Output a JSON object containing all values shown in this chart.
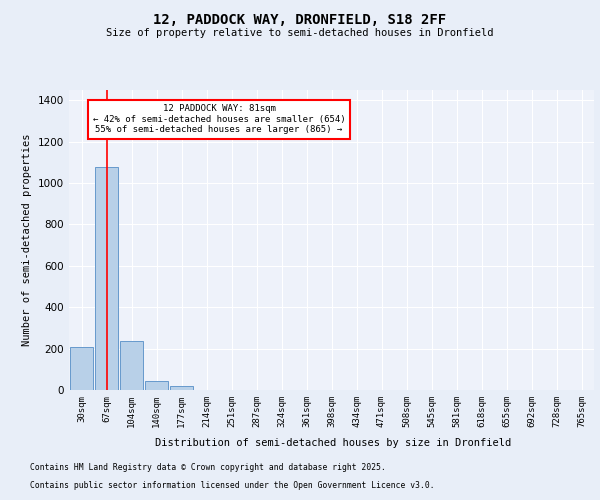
{
  "title_line1": "12, PADDOCK WAY, DRONFIELD, S18 2FF",
  "title_line2": "Size of property relative to semi-detached houses in Dronfield",
  "xlabel": "Distribution of semi-detached houses by size in Dronfield",
  "ylabel": "Number of semi-detached properties",
  "footer_line1": "Contains HM Land Registry data © Crown copyright and database right 2025.",
  "footer_line2": "Contains public sector information licensed under the Open Government Licence v3.0.",
  "annotation_line1": "12 PADDOCK WAY: 81sqm",
  "annotation_line2": "← 42% of semi-detached houses are smaller (654)",
  "annotation_line3": "55% of semi-detached houses are larger (865) →",
  "bar_categories": [
    "30sqm",
    "67sqm",
    "104sqm",
    "140sqm",
    "177sqm",
    "214sqm",
    "251sqm",
    "287sqm",
    "324sqm",
    "361sqm",
    "398sqm",
    "434sqm",
    "471sqm",
    "508sqm",
    "545sqm",
    "581sqm",
    "618sqm",
    "655sqm",
    "692sqm",
    "728sqm",
    "765sqm"
  ],
  "bar_values": [
    210,
    1080,
    235,
    45,
    20,
    0,
    0,
    0,
    0,
    0,
    0,
    0,
    0,
    0,
    0,
    0,
    0,
    0,
    0,
    0,
    0
  ],
  "bar_color": "#b8d0e8",
  "bar_edgecolor": "#6699cc",
  "red_line_x": 1.0,
  "ylim": [
    0,
    1450
  ],
  "yticks": [
    0,
    200,
    400,
    600,
    800,
    1000,
    1200,
    1400
  ],
  "bg_color": "#e8eef8",
  "plot_bg": "#eef2fa",
  "grid_color": "#d8e0f0"
}
